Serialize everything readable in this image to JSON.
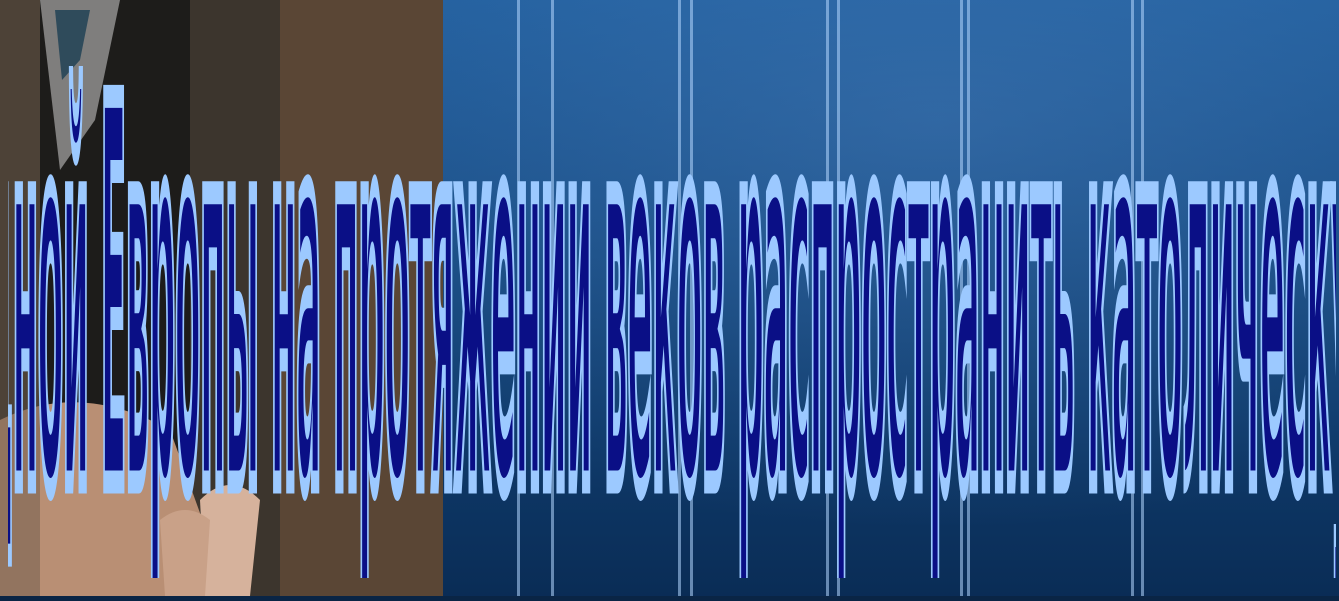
{
  "slide": {
    "title": "Все попытки римских пап и королей Западной Европы на протяжении веков распространить католическую веру на Русь оказались безуспешными."
  },
  "colors": {
    "background": "#174d86",
    "text_fill": "#0a0f86",
    "text_outline": "#9cc9ff"
  },
  "photo": {
    "label": ""
  }
}
